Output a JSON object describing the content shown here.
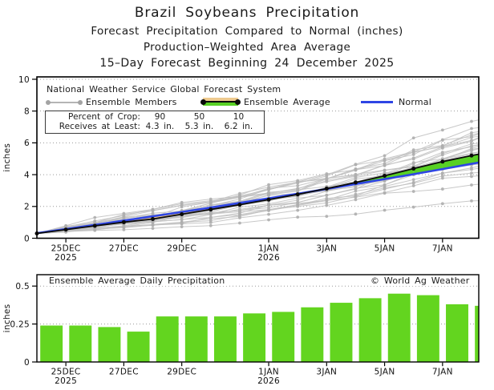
{
  "header": {
    "line1": "Brazil Soybeans Precipitation",
    "line2": "Forecast Precipitation Compared to Normal (inches)",
    "line3": "Production–Weighted Area Average",
    "line4": "15–Day Forecast Beginning 24 December 2025"
  },
  "chart_data": [
    {
      "type": "line",
      "panel": "cumulative-forecast-precipitation",
      "source_label": "National Weather Service Global Forecast System",
      "legend": {
        "members": "Ensemble Members",
        "average": "Ensemble Average",
        "normal": "Normal"
      },
      "crop_box": {
        "rows": [
          {
            "label": "Percent of Crop:",
            "values": [
              "90",
              "50",
              "10"
            ]
          },
          {
            "label": "Receives at Least:",
            "values": [
              "4.3 in.",
              "5.3 in.",
              "6.2 in."
            ]
          }
        ]
      },
      "ylabel": "inches",
      "ylim": [
        0,
        10.15
      ],
      "yticks": [
        0,
        2,
        4,
        6,
        8,
        10
      ],
      "x_days_total": 15.25,
      "x_ticks": [
        {
          "day": 1,
          "label": "25DEC",
          "year": "2025"
        },
        {
          "day": 3,
          "label": "27DEC"
        },
        {
          "day": 5,
          "label": "29DEC"
        },
        {
          "day": 8,
          "label": "1JAN",
          "year": "2026"
        },
        {
          "day": 10,
          "label": "3JAN"
        },
        {
          "day": 12,
          "label": "5JAN"
        },
        {
          "day": 14,
          "label": "7JAN"
        }
      ],
      "series": [
        {
          "name": "Ensemble Average",
          "color": "#0a0a0a",
          "values": [
            0.3,
            0.54,
            0.78,
            1.01,
            1.21,
            1.51,
            1.81,
            2.11,
            2.43,
            2.76,
            3.12,
            3.51,
            3.93,
            4.38,
            4.82,
            5.2
          ],
          "edge_value": 5.29
        },
        {
          "name": "Normal",
          "color": "#2e45e4",
          "values": [
            0.32,
            0.58,
            0.84,
            1.11,
            1.38,
            1.65,
            1.93,
            2.22,
            2.51,
            2.8,
            3.1,
            3.41,
            3.72,
            4.03,
            4.35,
            4.68
          ],
          "edge_value": 4.76
        }
      ],
      "band_colors": {
        "above_normal_fill": "#58d024",
        "below_normal_fill": "#eeca8f"
      },
      "ensemble_members": {
        "count": 31,
        "color": "#c2c2c2",
        "dot_color": "#aeaeae",
        "final_value_range": [
          2.3,
          7.4
        ]
      },
      "grid": "dotted"
    },
    {
      "type": "bar",
      "panel": "daily-precipitation",
      "title": "Ensemble Average Daily Precipitation",
      "watermark": "© World Ag Weather",
      "ylabel": "inches",
      "ylim": [
        0,
        0.575
      ],
      "yticks": [
        0,
        0.25,
        0.5
      ],
      "ytick_labels": [
        "0",
        "0.25",
        "0.5"
      ],
      "categories": [
        "24DEC",
        "25DEC",
        "26DEC",
        "27DEC",
        "28DEC",
        "29DEC",
        "30DEC",
        "31DEC",
        "1JAN",
        "2JAN",
        "3JAN",
        "4JAN",
        "5JAN",
        "6JAN",
        "7JAN",
        "8JAN"
      ],
      "values": [
        0.24,
        0.24,
        0.23,
        0.2,
        0.3,
        0.3,
        0.3,
        0.32,
        0.33,
        0.36,
        0.39,
        0.42,
        0.45,
        0.44,
        0.38,
        0.37
      ],
      "bar_color": "#63d51f",
      "x_ticks": [
        {
          "day": 1,
          "label": "25DEC",
          "year": "2025"
        },
        {
          "day": 3,
          "label": "27DEC"
        },
        {
          "day": 5,
          "label": "29DEC"
        },
        {
          "day": 8,
          "label": "1JAN",
          "year": "2026"
        },
        {
          "day": 10,
          "label": "3JAN"
        },
        {
          "day": 12,
          "label": "5JAN"
        },
        {
          "day": 14,
          "label": "7JAN"
        }
      ],
      "grid": "dotted"
    }
  ]
}
